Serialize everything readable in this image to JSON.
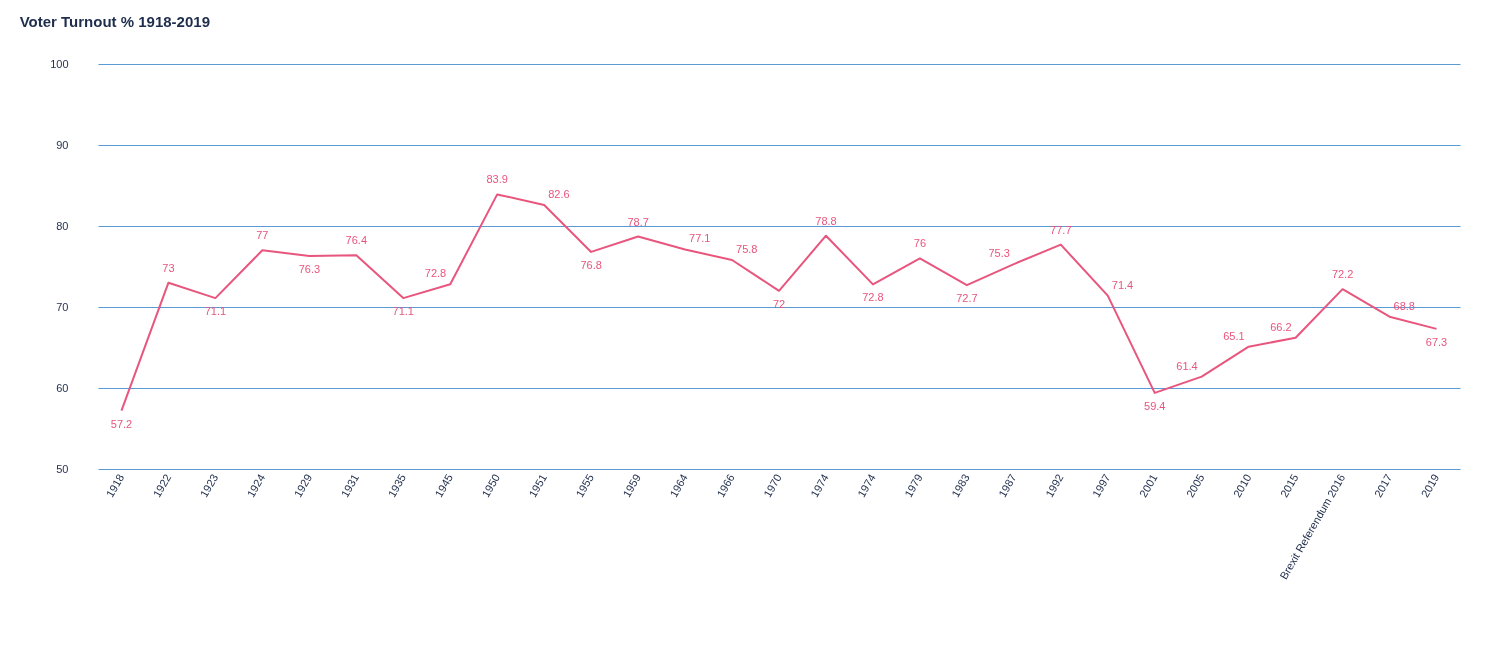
{
  "chart_data": {
    "type": "line",
    "title": "Voter Turnout % 1918-2019",
    "categories": [
      "1918",
      "1922",
      "1923",
      "1924",
      "1929",
      "1931",
      "1935",
      "1945",
      "1950",
      "1951",
      "1955",
      "1959",
      "1964",
      "1966",
      "1970",
      "1974",
      "1974",
      "1979",
      "1983",
      "1987",
      "1992",
      "1997",
      "2001",
      "2005",
      "2010",
      "2015",
      "Brexit Referendum 2016",
      "2017",
      "2019"
    ],
    "series": [
      {
        "color": "#e8557d",
        "values": [
          57.2,
          73,
          71.1,
          77,
          76.3,
          76.4,
          71.1,
          72.8,
          83.9,
          82.6,
          76.8,
          78.7,
          77.1,
          75.8,
          72,
          78.8,
          72.8,
          76,
          72.7,
          75.3,
          77.7,
          71.4,
          59.4,
          61.4,
          65.1,
          66.2,
          72.2,
          68.8,
          67.3
        ]
      }
    ],
    "ylim": [
      50,
      100
    ],
    "yticks": [
      50,
      60,
      70,
      80,
      90,
      100
    ],
    "grid": "y",
    "data_labels": true,
    "legend": false,
    "marker": "none",
    "line_style": "solid"
  }
}
